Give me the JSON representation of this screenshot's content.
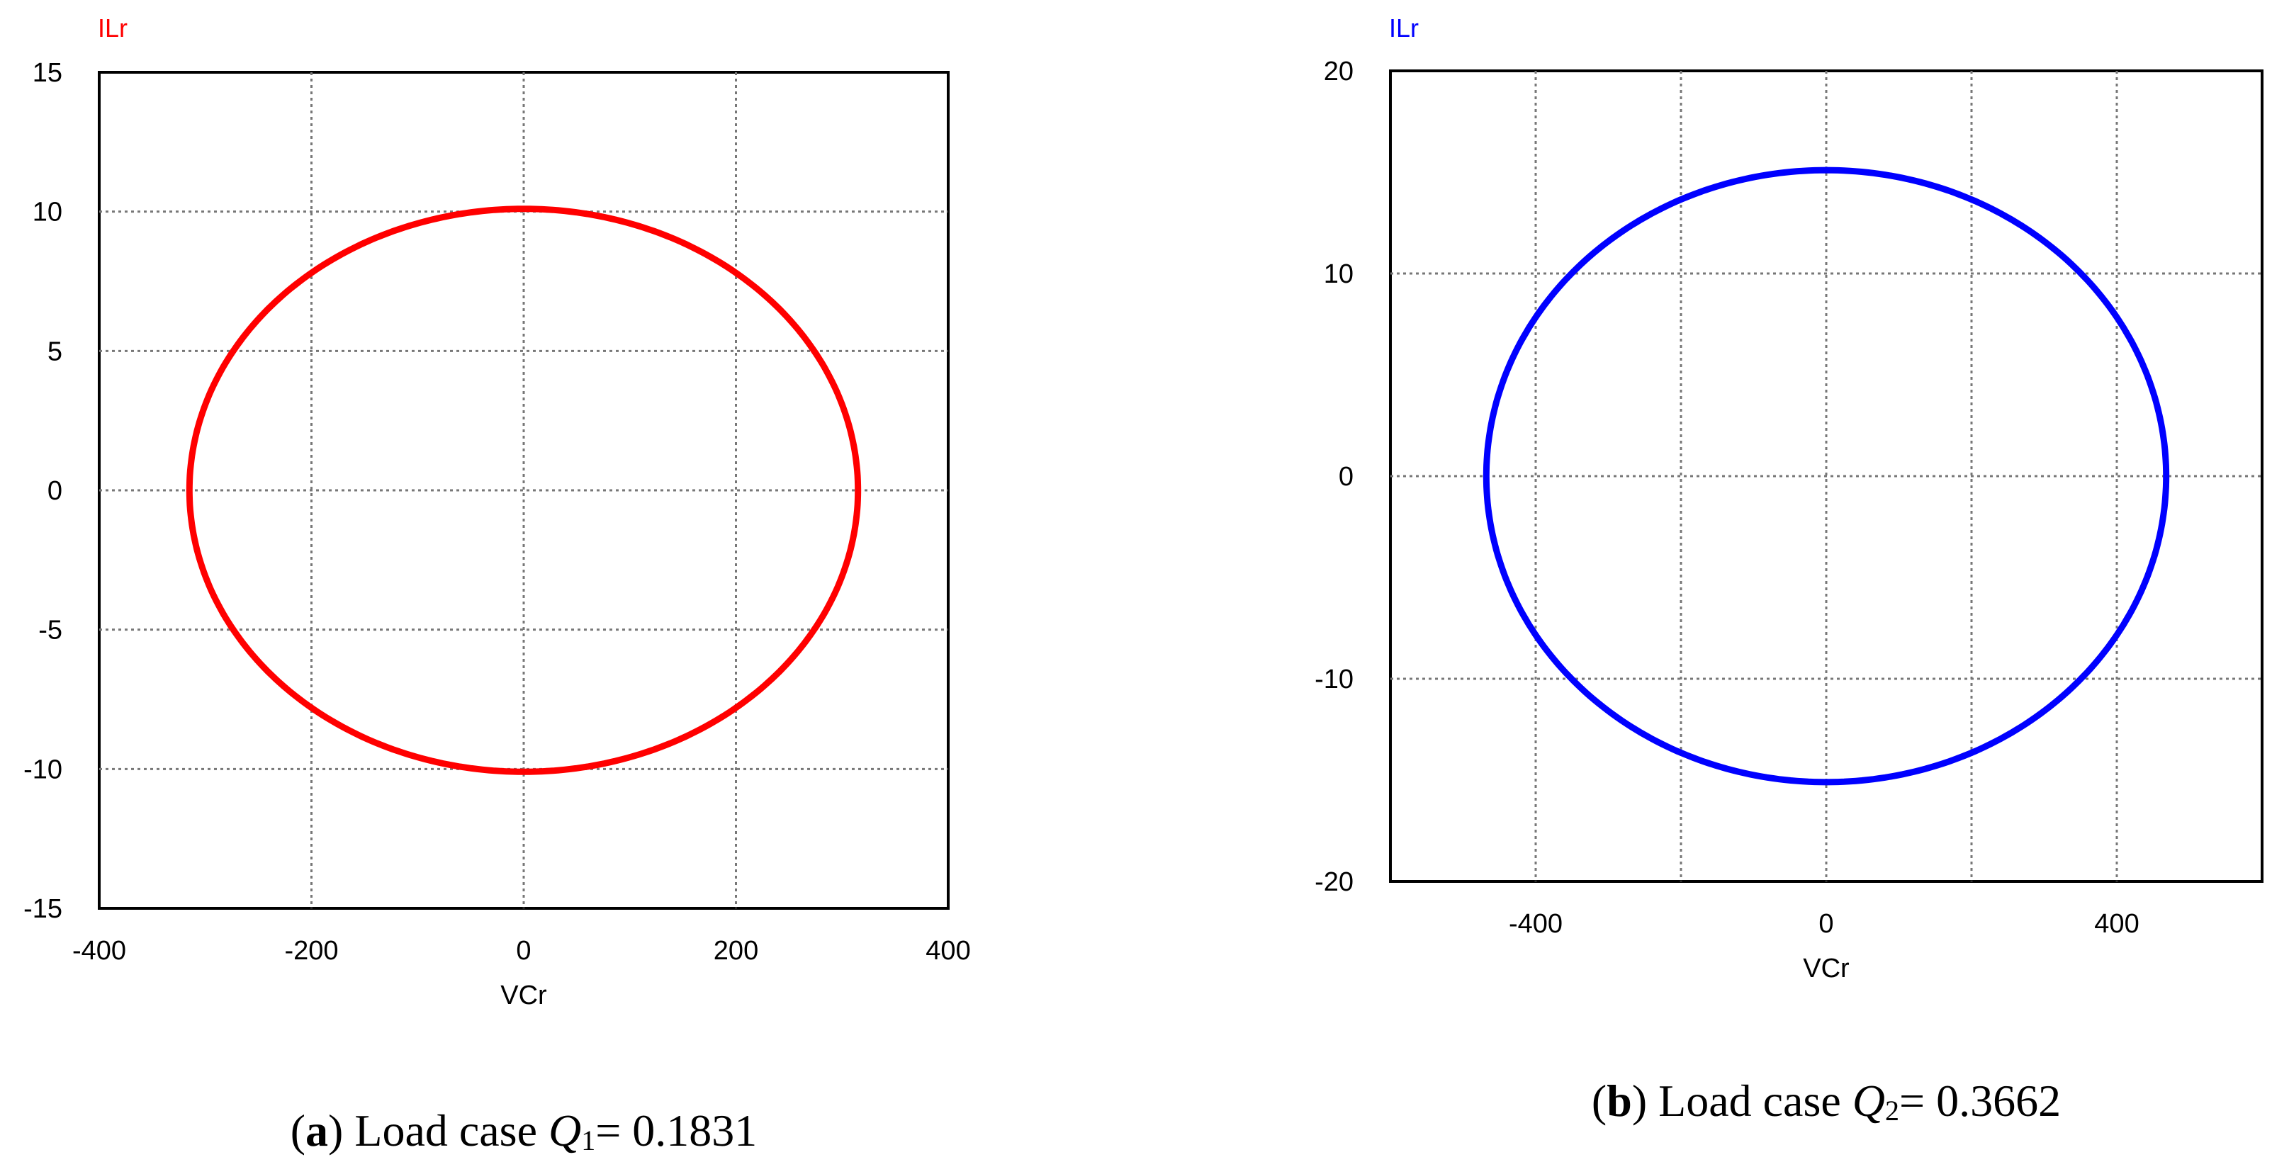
{
  "chart_data": [
    {
      "type": "line",
      "panel": "a",
      "series": [
        {
          "name": "ILr",
          "color": "#ff0000",
          "shape": "ellipse",
          "x_center": 0,
          "y_center": 0,
          "x_radius": 315,
          "y_radius": 10.1
        }
      ],
      "xlabel": "VCr",
      "ylabel": "ILr",
      "xlim": [
        -400,
        400
      ],
      "ylim": [
        -15,
        15
      ],
      "xticks": [
        -400,
        -200,
        0,
        200,
        400
      ],
      "yticks": [
        15,
        10,
        5,
        0,
        -5,
        -10,
        -15
      ],
      "grid": true,
      "caption": {
        "letter": "a",
        "text1": "Load case",
        "var": "Q",
        "sub": "1",
        "text2": "= 0.1831"
      }
    },
    {
      "type": "line",
      "panel": "b",
      "series": [
        {
          "name": "ILr",
          "color": "#0000ff",
          "shape": "ellipse",
          "x_center": 0,
          "y_center": 0,
          "x_radius": 468,
          "y_radius": 15.1
        }
      ],
      "xlabel": "VCr",
      "ylabel": "ILr",
      "xlim": [
        -600,
        600
      ],
      "ylim": [
        -20,
        20
      ],
      "xticks": [
        -400,
        0,
        400
      ],
      "xgrid": [
        -400,
        -200,
        0,
        200,
        400
      ],
      "yticks": [
        20,
        10,
        0,
        -10,
        -20
      ],
      "grid": true,
      "caption": {
        "letter": "b",
        "text1": "Load case",
        "var": "Q",
        "sub": "2",
        "text2": "= 0.3662"
      }
    }
  ]
}
